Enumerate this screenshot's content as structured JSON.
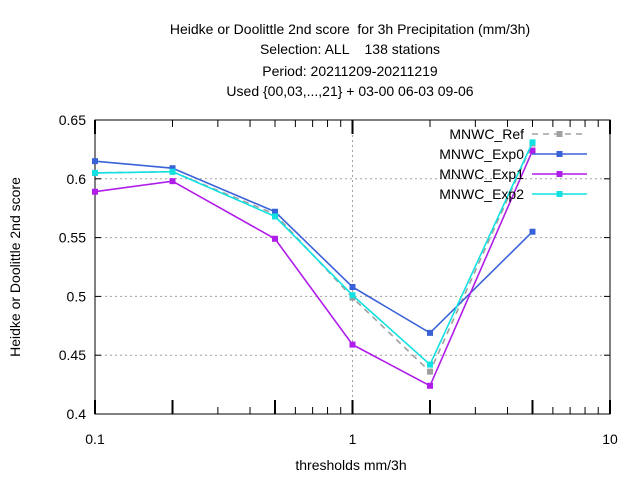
{
  "chart_data": {
    "type": "line",
    "title_lines": [
      "Heidke or Doolittle 2nd score  for 3h Precipitation (mm/3h)",
      "Selection: ALL    138 stations",
      "Period: 20211209-20211219",
      "Used {00,03,...,21} + 03-00 06-03 09-06"
    ],
    "xlabel": "thresholds mm/3h",
    "ylabel": "Heidke or Doolittle 2nd score",
    "x_scale": "log",
    "xlim": [
      0.1,
      10
    ],
    "ylim": [
      0.4,
      0.65
    ],
    "x_ticks": [
      {
        "value": 0.1,
        "label": "0.1"
      },
      {
        "value": 1,
        "label": "1"
      },
      {
        "value": 10,
        "label": "10"
      }
    ],
    "y_ticks": [
      {
        "value": 0.4,
        "label": "0.4"
      },
      {
        "value": 0.45,
        "label": "0.45"
      },
      {
        "value": 0.5,
        "label": "0.5"
      },
      {
        "value": 0.55,
        "label": "0.55"
      },
      {
        "value": 0.6,
        "label": "0.6"
      },
      {
        "value": 0.65,
        "label": "0.65"
      }
    ],
    "grid": true,
    "legend_position": "top-right",
    "x": [
      0.1,
      0.2,
      0.5,
      1,
      2,
      5
    ],
    "series": [
      {
        "name": "MNWC_Ref",
        "color": "#a0a0a0",
        "dashed": true,
        "values": [
          0.605,
          0.606,
          0.57,
          0.499,
          0.436,
          0.63
        ]
      },
      {
        "name": "MNWC_Exp0",
        "color": "#3a62d8",
        "dashed": false,
        "values": [
          0.615,
          0.609,
          0.572,
          0.508,
          0.469,
          0.555
        ]
      },
      {
        "name": "MNWC_Exp1",
        "color": "#b01cea",
        "dashed": false,
        "values": [
          0.589,
          0.598,
          0.549,
          0.459,
          0.424,
          0.624
        ]
      },
      {
        "name": "MNWC_Exp2",
        "color": "#12e1e1",
        "dashed": false,
        "values": [
          0.605,
          0.606,
          0.568,
          0.501,
          0.442,
          0.631
        ]
      }
    ]
  }
}
